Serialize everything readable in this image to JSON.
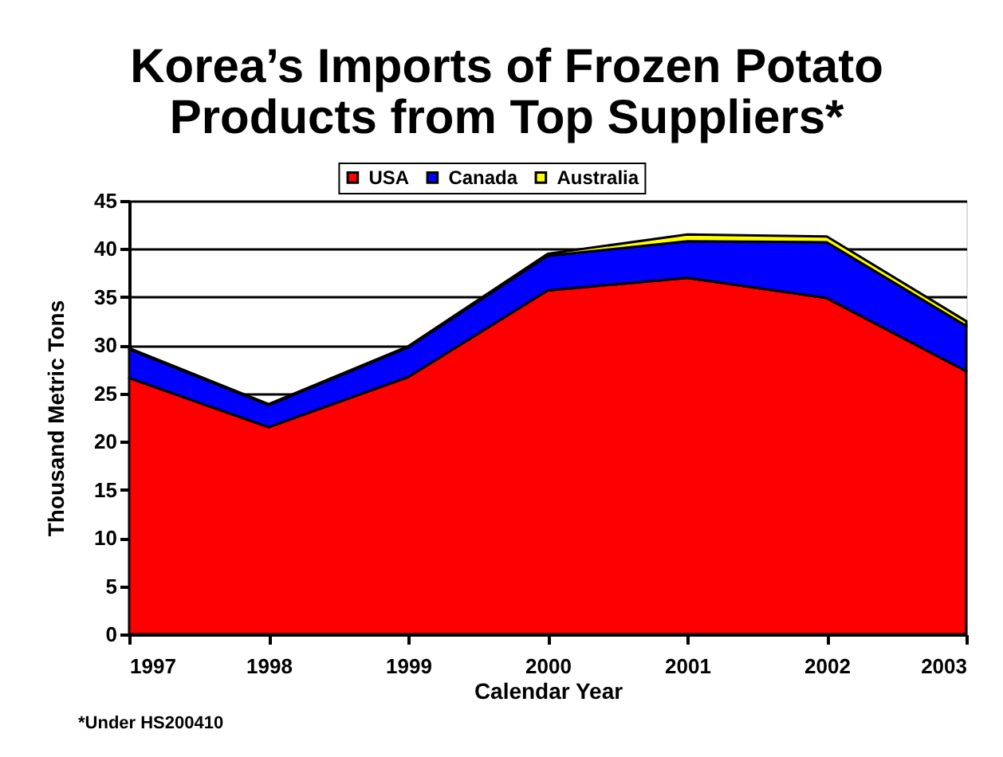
{
  "chart_data": {
    "type": "area",
    "title": "Korea’s Imports of Frozen Potato Products from Top Suppliers*",
    "xlabel": "Calendar Year",
    "ylabel": "Thousand Metric Tons",
    "annotations": [
      "*Under HS200410"
    ],
    "x": [
      1997,
      1998,
      1999,
      2000,
      2001,
      2002,
      2003
    ],
    "xlim": [
      1997,
      2003
    ],
    "xticks": [
      1997,
      1998,
      1999,
      2000,
      2001,
      2002,
      2003
    ],
    "ylim": [
      0,
      45
    ],
    "yticks": [
      0,
      5,
      10,
      15,
      20,
      25,
      30,
      35,
      40,
      45
    ],
    "stacked": true,
    "grid": "y",
    "legend": "top",
    "series": [
      {
        "name": "USA",
        "color": "#ff0000",
        "values": [
          26.6,
          21.5,
          26.7,
          35.7,
          37.0,
          34.9,
          27.3
        ]
      },
      {
        "name": "Canada",
        "color": "#0000ff",
        "values": [
          3.0,
          2.3,
          3.1,
          3.6,
          3.8,
          5.8,
          4.7
        ]
      },
      {
        "name": "Australia",
        "color": "#ffff00",
        "values": [
          0.1,
          0.1,
          0.1,
          0.2,
          0.7,
          0.6,
          0.5
        ]
      }
    ]
  }
}
